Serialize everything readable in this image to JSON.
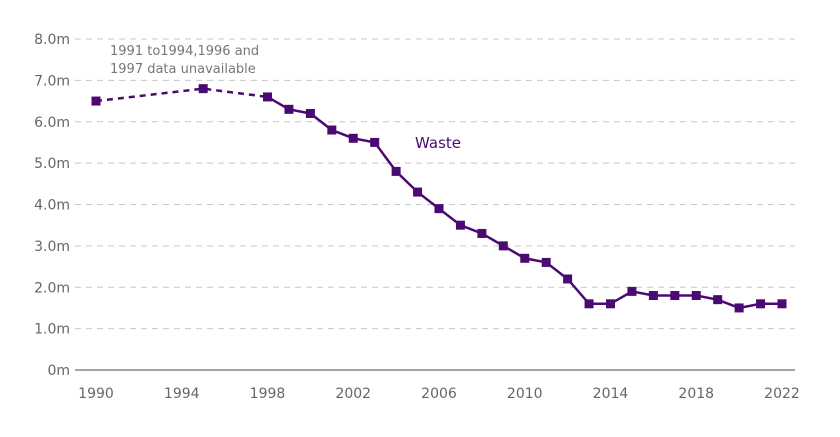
{
  "chart_data": {
    "type": "line",
    "title": "",
    "xlabel": "",
    "ylabel": "",
    "ylim": [
      0,
      8
    ],
    "xlim": [
      1990,
      2022
    ],
    "grid": true,
    "y_ticks": [
      0,
      1,
      2,
      3,
      4,
      5,
      6,
      7,
      8
    ],
    "y_tick_labels": [
      "0m",
      "1.0m",
      "2.0m",
      "3.0m",
      "4.0m",
      "5.0m",
      "6.0m",
      "7.0m",
      "8.0m"
    ],
    "x_ticks": [
      1990,
      1994,
      1998,
      2002,
      2006,
      2010,
      2014,
      2018,
      2022
    ],
    "x_tick_labels": [
      "1990",
      "1994",
      "1998",
      "2002",
      "2006",
      "2010",
      "2014",
      "2018",
      "2022"
    ],
    "annotation": [
      "1991 to1994,1996 and",
      "1997 data unavailable"
    ],
    "color": "#4b0a72",
    "series": [
      {
        "name": "Waste",
        "x": [
          1990,
          1995,
          1998,
          1999,
          2000,
          2001,
          2002,
          2003,
          2004,
          2005,
          2006,
          2007,
          2008,
          2009,
          2010,
          2011,
          2012,
          2013,
          2014,
          2015,
          2016,
          2017,
          2018,
          2019,
          2020,
          2021,
          2022
        ],
        "values": [
          6.5,
          6.8,
          6.6,
          6.3,
          6.2,
          5.8,
          5.6,
          5.5,
          4.8,
          4.3,
          3.9,
          3.5,
          3.3,
          3.0,
          2.7,
          2.6,
          2.2,
          1.6,
          1.6,
          1.9,
          1.8,
          1.8,
          1.8,
          1.7,
          1.5,
          1.6,
          1.6
        ],
        "dashed_until": 1998
      }
    ]
  }
}
